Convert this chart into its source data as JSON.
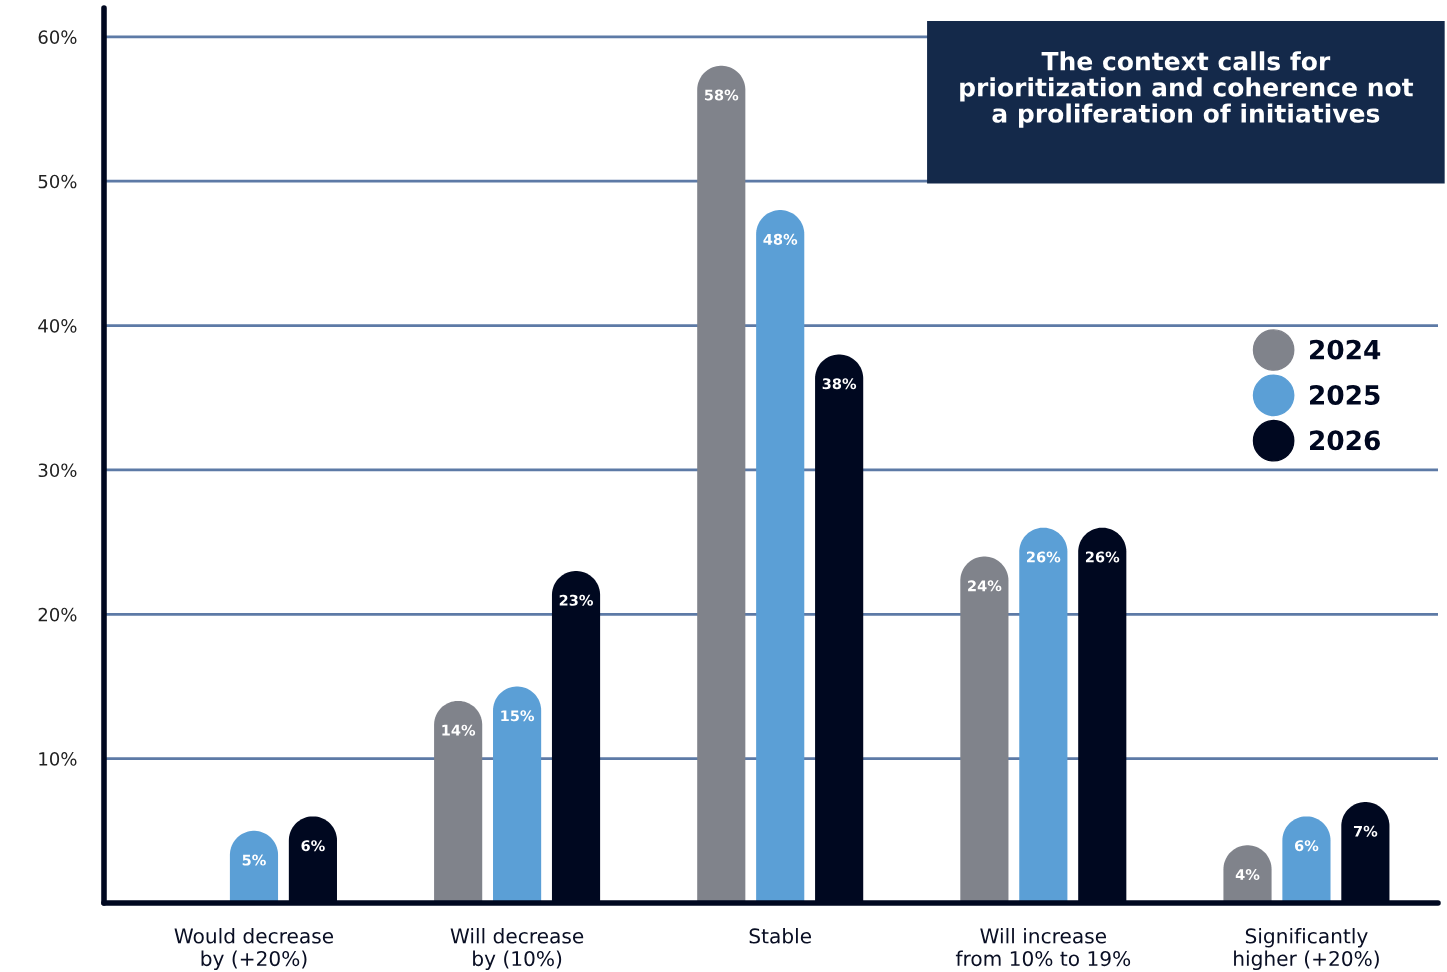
{
  "chart_data": {
    "type": "bar",
    "title": "The context calls for\nprioritization and coherence not\na proliferation of initiatives",
    "categories": [
      "Would decrease\nby (+20%)",
      "Will decrease\nby (10%)",
      "Stable",
      "Will increase\nfrom 10% to 19%",
      "Significantly\nhigher (+20%)"
    ],
    "series": [
      {
        "name": "2024",
        "color": "#80838b",
        "values": [
          null,
          14,
          58,
          24,
          4
        ],
        "value_labels": [
          null,
          "14%",
          "58%",
          "24%",
          "4%"
        ]
      },
      {
        "name": "2025",
        "color": "#5b9fd6",
        "values": [
          5,
          15,
          48,
          26,
          6
        ],
        "value_labels": [
          "5%",
          "15%",
          "48%",
          "26%",
          "6%"
        ]
      },
      {
        "name": "2026",
        "color": "#000820",
        "values": [
          6,
          23,
          38,
          26,
          7
        ],
        "value_labels": [
          "6%",
          "23%",
          "38%",
          "26%",
          "7%"
        ]
      }
    ],
    "ylim": [
      0,
      62
    ],
    "yticks": [
      {
        "value": 10,
        "label": "10%"
      },
      {
        "value": 20,
        "label": "20%"
      },
      {
        "value": 30,
        "label": "30%"
      },
      {
        "value": 40,
        "label": "40%"
      },
      {
        "value": 50,
        "label": "50%"
      },
      {
        "value": 60,
        "label": "60%"
      }
    ],
    "grid": "y",
    "legend": "right"
  }
}
